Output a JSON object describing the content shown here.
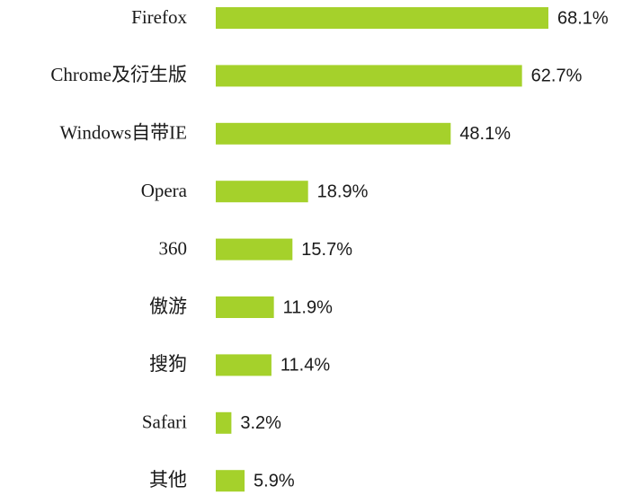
{
  "chart_data": {
    "type": "bar",
    "orientation": "horizontal",
    "categories": [
      "Firefox",
      "Chrome及衍生版",
      "Windows自带IE",
      "Opera",
      "360",
      "傲游",
      "搜狗",
      "Safari",
      "其他"
    ],
    "values": [
      68.1,
      62.7,
      48.1,
      18.9,
      15.7,
      11.9,
      11.4,
      3.2,
      5.9
    ],
    "value_labels": [
      "68.1%",
      "62.7%",
      "48.1%",
      "18.9%",
      "15.7%",
      "11.9%",
      "11.4%",
      "3.2%",
      "5.9%"
    ],
    "color": "#a5d12b"
  }
}
